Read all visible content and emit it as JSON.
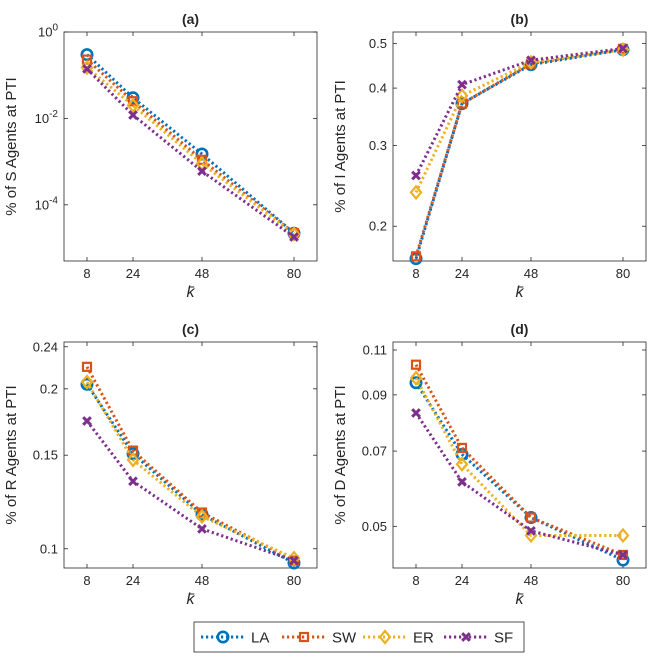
{
  "colors": {
    "LA": "#0072BD",
    "SW": "#D95319",
    "ER": "#EDB120",
    "SF": "#7E2F8E"
  },
  "chart_data": [
    {
      "type": "line",
      "title": "(a)",
      "xlabel": "k̄",
      "ylabel": "% of S Agents at PTI",
      "yscale": "log",
      "x": [
        8,
        24,
        48,
        80
      ],
      "xticks": [
        "8",
        "24",
        "48",
        "80"
      ],
      "xlim": [
        0,
        88
      ],
      "ylim": [
        5e-06,
        1
      ],
      "yticks": [
        {
          "value": 1,
          "base": "10",
          "exp": "0"
        },
        {
          "value": 0.01,
          "base": "10",
          "exp": "-2"
        },
        {
          "value": 0.0001,
          "base": "10",
          "exp": "-4"
        }
      ],
      "series": [
        {
          "name": "LA",
          "values": [
            0.3,
            0.03,
            0.0015,
            2.2e-05
          ]
        },
        {
          "name": "SW",
          "values": [
            0.23,
            0.025,
            0.0011,
            2.2e-05
          ]
        },
        {
          "name": "ER",
          "values": [
            0.15,
            0.02,
            0.0009,
            2.1e-05
          ]
        },
        {
          "name": "SF",
          "values": [
            0.14,
            0.012,
            0.0006,
            1.8e-05
          ]
        }
      ]
    },
    {
      "type": "line",
      "title": "(b)",
      "xlabel": "k̄",
      "ylabel": "% of I Agents at PTI",
      "yscale": "log",
      "x": [
        8,
        24,
        48,
        80
      ],
      "xticks": [
        "8",
        "24",
        "48",
        "80"
      ],
      "xlim": [
        0,
        88
      ],
      "ylim": [
        0.168,
        0.53
      ],
      "yticks": [
        {
          "value": 0.2,
          "label": "0.2"
        },
        {
          "value": 0.3,
          "label": "0.3"
        },
        {
          "value": 0.4,
          "label": "0.4"
        },
        {
          "value": 0.5,
          "label": "0.5"
        }
      ],
      "series": [
        {
          "name": "LA",
          "values": [
            0.17,
            0.37,
            0.45,
            0.485
          ]
        },
        {
          "name": "SW",
          "values": [
            0.172,
            0.37,
            0.452,
            0.487
          ]
        },
        {
          "name": "ER",
          "values": [
            0.237,
            0.385,
            0.455,
            0.485
          ]
        },
        {
          "name": "SF",
          "values": [
            0.258,
            0.407,
            0.46,
            0.488
          ]
        }
      ]
    },
    {
      "type": "line",
      "title": "(c)",
      "xlabel": "k̄",
      "ylabel": "% of R Agents at PTI",
      "yscale": "log",
      "x": [
        8,
        24,
        48,
        80
      ],
      "xticks": [
        "8",
        "24",
        "48",
        "80"
      ],
      "xlim": [
        0,
        88
      ],
      "ylim": [
        0.092,
        0.245
      ],
      "yticks": [
        {
          "value": 0.1,
          "label": "0.1"
        },
        {
          "value": 0.15,
          "label": "0.15"
        },
        {
          "value": 0.2,
          "label": "0.2"
        },
        {
          "value": 0.24,
          "label": "0.24"
        }
      ],
      "series": [
        {
          "name": "LA",
          "values": [
            0.204,
            0.151,
            0.116,
            0.094
          ]
        },
        {
          "name": "SW",
          "values": [
            0.22,
            0.153,
            0.117,
            0.095
          ]
        },
        {
          "name": "ER",
          "values": [
            0.206,
            0.147,
            0.115,
            0.096
          ]
        },
        {
          "name": "SF",
          "values": [
            0.174,
            0.134,
            0.109,
            0.095
          ]
        }
      ]
    },
    {
      "type": "line",
      "title": "(d)",
      "xlabel": "k̄",
      "ylabel": "% of D Agents at PTI",
      "yscale": "log",
      "x": [
        8,
        24,
        48,
        80
      ],
      "xticks": [
        "8",
        "24",
        "48",
        "80"
      ],
      "xlim": [
        0,
        88
      ],
      "ylim": [
        0.0415,
        0.114
      ],
      "yticks": [
        {
          "value": 0.05,
          "label": "0.05"
        },
        {
          "value": 0.07,
          "label": "0.07"
        },
        {
          "value": 0.09,
          "label": "0.09"
        },
        {
          "value": 0.11,
          "label": "0.11"
        }
      ],
      "series": [
        {
          "name": "LA",
          "values": [
            0.095,
            0.069,
            0.052,
            0.043
          ]
        },
        {
          "name": "SW",
          "values": [
            0.103,
            0.071,
            0.052,
            0.044
          ]
        },
        {
          "name": "ER",
          "values": [
            0.097,
            0.066,
            0.048,
            0.048
          ]
        },
        {
          "name": "SF",
          "values": [
            0.083,
            0.061,
            0.049,
            0.044
          ]
        }
      ]
    }
  ],
  "legend": {
    "entries": [
      "LA",
      "SW",
      "ER",
      "SF"
    ]
  }
}
